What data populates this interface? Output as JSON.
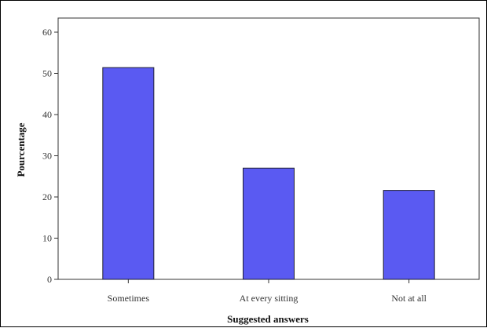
{
  "chart_data": {
    "type": "bar",
    "categories": [
      "Sometimes",
      "At every sitting",
      "Not at all"
    ],
    "values": [
      51.4,
      27,
      21.6
    ],
    "xlabel": "Suggested answers",
    "ylabel": "Pourcentage",
    "ylim": [
      0,
      60
    ],
    "yticks": [
      0,
      10,
      20,
      30,
      40,
      50,
      60
    ],
    "grid": false,
    "bar_color": "#5a5af2",
    "bar_edge_color": "#1f1f33"
  }
}
